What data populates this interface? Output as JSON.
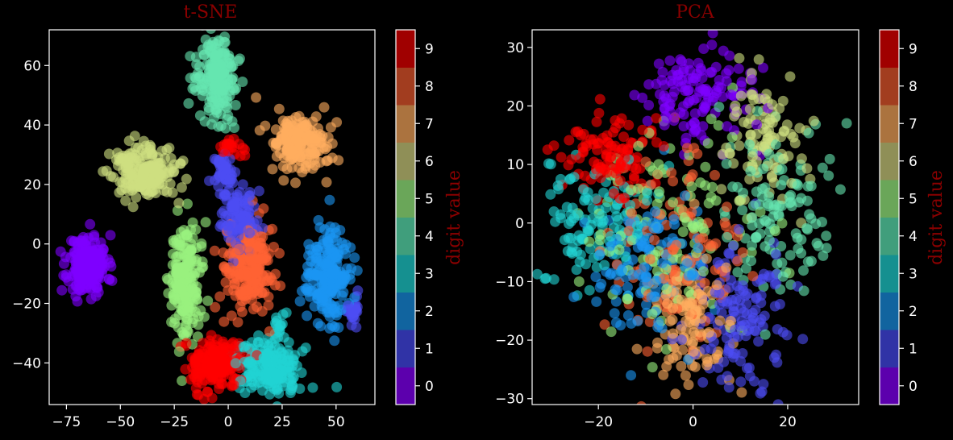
{
  "chart_data": [
    {
      "type": "scatter",
      "title": "t-SNE",
      "xlabel": "",
      "ylabel": "",
      "xlim": [
        -83,
        68
      ],
      "ylim": [
        -54,
        72
      ],
      "xticks": [
        -75,
        -50,
        -25,
        0,
        25,
        50
      ],
      "yticks": [
        -40,
        -20,
        0,
        20,
        40,
        60
      ],
      "point_alpha": 0.6,
      "colorbar": {
        "label": "digit value",
        "ticks": [
          0,
          1,
          2,
          3,
          4,
          5,
          6,
          7,
          8,
          9
        ]
      },
      "clusters": [
        {
          "digit": 0,
          "center": [
            -65,
            -7
          ],
          "spread": [
            4.5,
            5
          ],
          "count": 220
        },
        {
          "digit": 1,
          "center": [
            5,
            9
          ],
          "spread": [
            4,
            5
          ],
          "count": 110
        },
        {
          "digit": 1,
          "center": [
            -2,
            24
          ],
          "spread": [
            3,
            3.5
          ],
          "count": 50
        },
        {
          "digit": 1,
          "center": [
            58,
            -22
          ],
          "spread": [
            1.6,
            2.4
          ],
          "count": 25
        },
        {
          "digit": 2,
          "center": [
            46,
            -10
          ],
          "spread": [
            4.5,
            8
          ],
          "count": 220
        },
        {
          "digit": 3,
          "center": [
            18,
            -41
          ],
          "spread": [
            7,
            4.5
          ],
          "count": 200
        },
        {
          "digit": 3,
          "center": [
            24,
            -28
          ],
          "spread": [
            1.6,
            2.4
          ],
          "count": 15
        },
        {
          "digit": 4,
          "center": [
            -5,
            56
          ],
          "spread": [
            5,
            7
          ],
          "count": 200
        },
        {
          "digit": 5,
          "center": [
            -20,
            -14
          ],
          "spread": [
            3.5,
            10
          ],
          "count": 200
        },
        {
          "digit": 6,
          "center": [
            -38,
            24
          ],
          "spread": [
            7,
            4.5
          ],
          "count": 200
        },
        {
          "digit": 7,
          "center": [
            33,
            34
          ],
          "spread": [
            6.5,
            4.5
          ],
          "count": 200
        },
        {
          "digit": 8,
          "center": [
            10,
            -9
          ],
          "spread": [
            6,
            7
          ],
          "count": 220
        },
        {
          "digit": 9,
          "center": [
            -6,
            -40
          ],
          "spread": [
            6,
            4.5
          ],
          "count": 200
        },
        {
          "digit": 9,
          "center": [
            3,
            32
          ],
          "spread": [
            2.5,
            1.6
          ],
          "count": 20
        }
      ]
    },
    {
      "type": "scatter",
      "title": "PCA",
      "xlabel": "",
      "ylabel": "",
      "xlim": [
        -34,
        35
      ],
      "ylim": [
        -31,
        33
      ],
      "xticks": [
        -20,
        0,
        20
      ],
      "yticks": [
        -30,
        -20,
        -10,
        0,
        10,
        20,
        30
      ],
      "point_alpha": 0.6,
      "colorbar": {
        "label": "digit value",
        "ticks": [
          0,
          1,
          2,
          3,
          4,
          5,
          6,
          7,
          8,
          9
        ]
      },
      "clusters": [
        {
          "digit": 0,
          "center": [
            0,
            22
          ],
          "spread": [
            6,
            4
          ],
          "count": 130
        },
        {
          "digit": 1,
          "center": [
            9,
            -16
          ],
          "spread": [
            5,
            6
          ],
          "count": 130
        },
        {
          "digit": 2,
          "center": [
            -9,
            -8
          ],
          "spread": [
            6,
            6
          ],
          "count": 130
        },
        {
          "digit": 3,
          "center": [
            -20,
            1
          ],
          "spread": [
            6,
            6
          ],
          "count": 120
        },
        {
          "digit": 4,
          "center": [
            18,
            2
          ],
          "spread": [
            6,
            7
          ],
          "count": 120
        },
        {
          "digit": 5,
          "center": [
            -4,
            0
          ],
          "spread": [
            9,
            9
          ],
          "count": 120
        },
        {
          "digit": 6,
          "center": [
            15,
            14
          ],
          "spread": [
            4,
            5
          ],
          "count": 100
        },
        {
          "digit": 7,
          "center": [
            -1,
            -17
          ],
          "spread": [
            4,
            5
          ],
          "count": 120
        },
        {
          "digit": 8,
          "center": [
            -4,
            -5
          ],
          "spread": [
            7,
            8
          ],
          "count": 120
        },
        {
          "digit": 9,
          "center": [
            -17,
            11
          ],
          "spread": [
            5,
            3.5
          ],
          "count": 110
        }
      ]
    }
  ],
  "colors": {
    "digit_palette": [
      "#7f00ff",
      "#4d4df3",
      "#1a96f3",
      "#22d3d3",
      "#66e6b0",
      "#99f27f",
      "#cfe080",
      "#ffae5f",
      "#ff6233",
      "#ff0000"
    ],
    "colorbar_palette": [
      "#5c00ad",
      "#3033a6",
      "#11649f",
      "#159090",
      "#409e7c",
      "#6aa659",
      "#8f8f57",
      "#ab733f",
      "#a23d1f",
      "#a00000"
    ],
    "axes_edge": "#ffffff",
    "background": "#000000",
    "title": "#8b0000"
  }
}
